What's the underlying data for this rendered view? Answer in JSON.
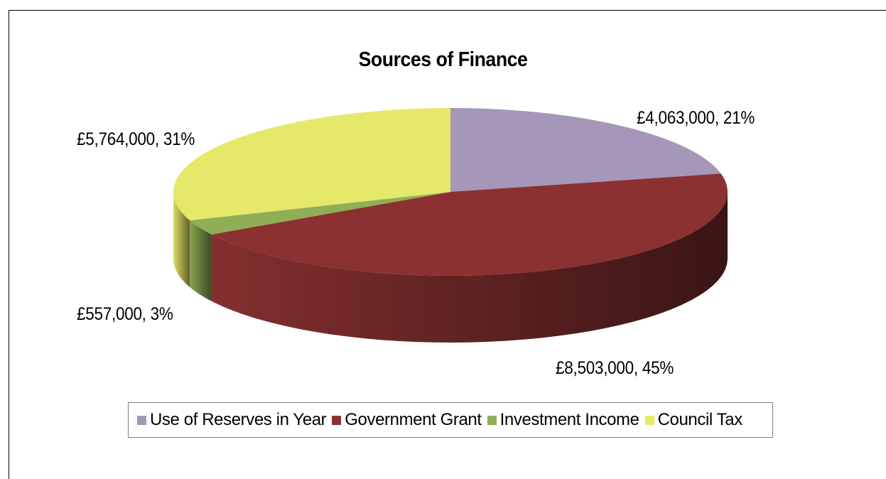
{
  "chart_data": {
    "type": "pie",
    "title": "Sources of Finance",
    "slices": [
      {
        "name": "Use of Reserves in Year",
        "value": 4063000,
        "percent": 21,
        "label": "£4,063,000, 21%",
        "color": "#a597b9"
      },
      {
        "name": "Government Grant",
        "value": 8503000,
        "percent": 45,
        "label": "£8,503,000, 45%",
        "color": "#8b3131"
      },
      {
        "name": "Investment Income",
        "value": 557000,
        "percent": 3,
        "label": "£557,000, 3%",
        "color": "#8fae55"
      },
      {
        "name": "Council Tax",
        "value": 5764000,
        "percent": 31,
        "label": "£5,764,000, 31%",
        "color": "#e6e86a"
      }
    ],
    "style": "3d",
    "legend_position": "bottom"
  }
}
